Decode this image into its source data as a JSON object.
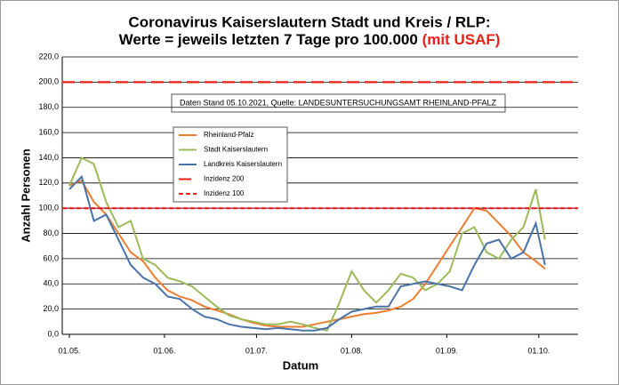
{
  "chart_data": {
    "type": "line",
    "title_line1": "Coronavirus Kaiserslautern Stadt und Kreis / RLP:",
    "title_line2": "Werte = jeweils letzten 7 Tage pro 100.000",
    "title_highlight": "(mit USAF)",
    "annotation": "Daten Stand 05.10.2021, Quelle: LANDESUNTERSUCHUNGSAMT RHEINLAND-PFALZ",
    "x_label": "Datum",
    "y_label": "Anzahl Personen",
    "x": [
      "01.05.",
      "05.05.",
      "09.05.",
      "13.05.",
      "17.05.",
      "21.05.",
      "25.05.",
      "29.05.",
      "02.06.",
      "06.06.",
      "10.06.",
      "14.06.",
      "18.06.",
      "22.06.",
      "26.06.",
      "30.06.",
      "04.07.",
      "08.07.",
      "12.07.",
      "16.07.",
      "20.07.",
      "24.07.",
      "28.07.",
      "01.08.",
      "05.08.",
      "09.08.",
      "13.08.",
      "17.08.",
      "21.08.",
      "25.08.",
      "29.08.",
      "02.09.",
      "06.09.",
      "10.09.",
      "14.09.",
      "18.09.",
      "22.09.",
      "26.09.",
      "30.09.",
      "03.10."
    ],
    "xticks": [
      "01.05.",
      "01.06.",
      "01.07.",
      "01.08.",
      "01.09.",
      "01.10."
    ],
    "series": [
      {
        "name": "Rheinland-Pfalz",
        "color": "#ed7d31",
        "values": [
          118,
          122,
          105,
          95,
          80,
          65,
          58,
          45,
          35,
          30,
          27,
          22,
          19,
          16,
          12,
          9,
          7,
          6,
          6,
          6,
          8,
          10,
          12,
          14,
          16,
          17,
          19,
          22,
          28,
          40,
          55,
          70,
          85,
          100,
          98,
          88,
          78,
          65,
          58,
          52
        ]
      },
      {
        "name": "Stadt Kaiserslautern",
        "color": "#9bbb59",
        "values": [
          118,
          140,
          135,
          105,
          85,
          90,
          60,
          55,
          45,
          42,
          38,
          30,
          22,
          15,
          12,
          10,
          8,
          8,
          10,
          8,
          5,
          3,
          25,
          50,
          35,
          25,
          35,
          48,
          45,
          35,
          40,
          50,
          80,
          85,
          65,
          60,
          75,
          85,
          115,
          75
        ]
      },
      {
        "name": "Landkreis Kaiserslautern",
        "color": "#4a74a8",
        "values": [
          115,
          125,
          90,
          95,
          75,
          55,
          45,
          40,
          30,
          28,
          20,
          14,
          12,
          8,
          6,
          5,
          4,
          5,
          4,
          3,
          3,
          5,
          12,
          18,
          20,
          22,
          22,
          38,
          40,
          42,
          40,
          38,
          35,
          55,
          72,
          75,
          60,
          65,
          88,
          55
        ]
      },
      {
        "name": "Inzidenz 200",
        "color": "#e8201a",
        "value": 200,
        "dash": "14 6"
      },
      {
        "name": "Inzidenz 100",
        "color": "#e8201a",
        "value": 100,
        "dash": "5 3"
      }
    ],
    "ylim": [
      0,
      220
    ],
    "yticks": [
      {
        "value": 0,
        "label": "0,0"
      },
      {
        "value": 20,
        "label": "20,0"
      },
      {
        "value": 40,
        "label": "40,0"
      },
      {
        "value": 60,
        "label": "60,0"
      },
      {
        "value": 80,
        "label": "80,0"
      },
      {
        "value": 100,
        "label": "100,0"
      },
      {
        "value": 120,
        "label": "120,0"
      },
      {
        "value": 140,
        "label": "140,0"
      },
      {
        "value": 160,
        "label": "160,0"
      },
      {
        "value": 180,
        "label": "180,0"
      },
      {
        "value": 200,
        "label": "200,0"
      },
      {
        "value": 220,
        "label": "220,0"
      }
    ],
    "grid": true
  }
}
